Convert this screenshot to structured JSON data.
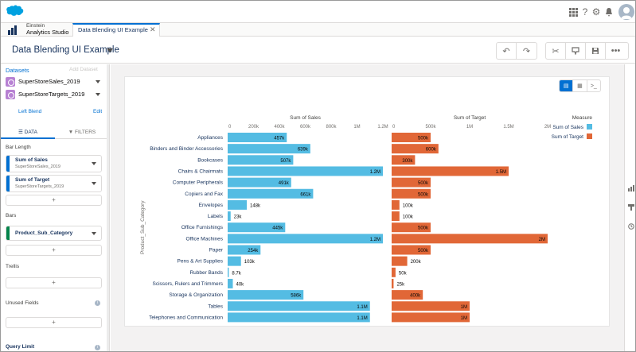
{
  "topbar": {
    "icons": [
      "apps-grid-icon",
      "help-icon",
      "setup-gear-icon",
      "notifications-bell-icon"
    ],
    "brand_color": "#00a1e0"
  },
  "tabbar": {
    "app_name_line1": "Einstein",
    "app_name_line2": "Analytics Studio",
    "active_tab": "Data Blending UI Example"
  },
  "header": {
    "title": "Data Blending UI Example"
  },
  "left_panel": {
    "datasets_label": "Datasets",
    "add_dataset": "Add Dataset",
    "datasets": [
      {
        "name": "SuperStoreSales_2019"
      },
      {
        "name": "SuperStoreTargets_2019"
      }
    ],
    "left_blend": "Left Blend",
    "edit": "Edit",
    "tabs": {
      "data": "DATA",
      "filters": "FILTERS"
    },
    "bar_length_label": "Bar Length",
    "measures": [
      {
        "name": "Sum of Sales",
        "dataset": "SuperStoreSales_2019"
      },
      {
        "name": "Sum of Target",
        "dataset": "SuperStoreTargets_2019"
      }
    ],
    "bars_label": "Bars",
    "bars_field": "Product_Sub_Category",
    "trellis_label": "Trellis",
    "unused_fields_label": "Unused Fields",
    "query_limit_label": "Query Limit",
    "add_symbol": "+"
  },
  "chart_data": {
    "type": "bar",
    "orientation": "horizontal",
    "axis_label": "Product_Sub_Category",
    "legend_title": "Measure",
    "legend_position": "top-right",
    "categories": [
      "Appliances",
      "Binders and Binder Accessories",
      "Bookcases",
      "Chairs & Chairmats",
      "Computer Peripherals",
      "Copiers and Fax",
      "Envelopes",
      "Labels",
      "Office Furnishings",
      "Office Machines",
      "Paper",
      "Pens & Art Supplies",
      "Rubber Bands",
      "Scissors, Rulers and Trimmers",
      "Storage & Organization",
      "Tables",
      "Telephones and Communication"
    ],
    "panels": [
      {
        "name": "Sum of Sales",
        "color": "#54bce3",
        "xlim": [
          0,
          1200000
        ],
        "ticks": [
          0,
          200000,
          400000,
          600000,
          800000,
          1000000,
          1200000
        ],
        "tick_labels": [
          "0",
          "200k",
          "400k",
          "600k",
          "800k",
          "1M",
          "1.2M"
        ],
        "values": [
          457000,
          639000,
          507000,
          1200000,
          491000,
          661000,
          148000,
          23000,
          445000,
          1200000,
          254000,
          103000,
          8700,
          40000,
          586000,
          1100000,
          1100000
        ],
        "labels": [
          "457k",
          "639k",
          "507k",
          "1.2M",
          "491k",
          "661k",
          "148k",
          "23k",
          "445k",
          "1.2M",
          "254k",
          "103k",
          "8.7k",
          "40k",
          "586k",
          "1.1M",
          "1.1M"
        ]
      },
      {
        "name": "Sum of Target",
        "color": "#e16737",
        "xlim": [
          0,
          2000000
        ],
        "ticks": [
          0,
          500000,
          1000000,
          1500000,
          2000000
        ],
        "tick_labels": [
          "0",
          "500k",
          "1M",
          "1.5M",
          "2M"
        ],
        "values": [
          500000,
          600000,
          300000,
          1500000,
          500000,
          500000,
          100000,
          100000,
          500000,
          2000000,
          500000,
          200000,
          50000,
          25000,
          400000,
          1000000,
          1000000
        ],
        "labels": [
          "500k",
          "600k",
          "300k",
          "1.5M",
          "500k",
          "500k",
          "100k",
          "100k",
          "500k",
          "2M",
          "500k",
          "200k",
          "50k",
          "25k",
          "400k",
          "1M",
          "1M"
        ]
      }
    ]
  }
}
